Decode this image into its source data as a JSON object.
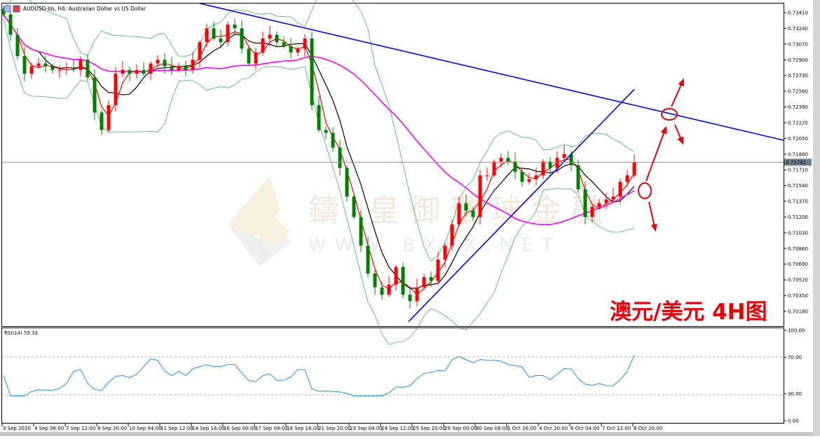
{
  "header": {
    "title": "AUDUSD-bb, H4:  Australian Dollar vs US Dollar"
  },
  "annotation": {
    "label": "澳元/美元 4H图",
    "color": "#e8000b"
  },
  "watermark": {
    "cn": "鑄 皇御環球金融",
    "url": "W W W . B X F X . N E T"
  },
  "rsi_panel": {
    "label": "RSI(14) 59.33",
    "ticks": [
      "100.00",
      "70.00",
      "30.00",
      "0.00"
    ]
  },
  "colors": {
    "bull": "#ff0000",
    "bear": "#008000",
    "ma_fast": "#ff0000",
    "ma_mid": "#000000",
    "ma_slow": "#ff00ff",
    "bands": "#3cb371",
    "trendline": "#0000ff",
    "rsi": "#1e90ff",
    "current_price_bg": "#708090"
  },
  "chart_data": {
    "type": "candlestick",
    "symbol": "AUDUSD-bb",
    "timeframe": "H4",
    "ylim": [
      0.7007,
      0.735
    ],
    "y_ticks": [
      "0.73410",
      "0.73240",
      "0.73070",
      "0.72900",
      "0.72730",
      "0.72560",
      "0.72390",
      "0.72220",
      "0.72050",
      "0.71880",
      "0.71710",
      "0.71540",
      "0.71370",
      "0.71200",
      "0.71030",
      "0.70860",
      "0.70690",
      "0.70520",
      "0.70350",
      "0.70180"
    ],
    "current_price": "0.71792",
    "x_ticks": [
      "3 Sep 2020",
      "4 Sep 08:00",
      "7 Sep 12:00",
      "8 Sep 20:00",
      "10 Sep 04:00",
      "11 Sep 12:00",
      "14 Sep 16:00",
      "16 Sep 00:00",
      "17 Sep 08:00",
      "18 Sep 16:00",
      "21 Sep 20:00",
      "23 Sep 04:00",
      "24 Sep 12:00",
      "25 Sep 20:00",
      "29 Sep 00:00",
      "30 Sep 08:00",
      "1 Oct 16:00",
      "4 Oct 20:00",
      "6 Oct 04:00",
      "7 Oct 12:00",
      "8 Oct 20:00"
    ],
    "closes": [
      0.7339,
      0.7317,
      0.7294,
      0.7275,
      0.7283,
      0.7286,
      0.7283,
      0.7279,
      0.7279,
      0.728,
      0.7279,
      0.729,
      0.7271,
      0.7233,
      0.7214,
      0.7241,
      0.7275,
      0.7279,
      0.7275,
      0.7279,
      0.7275,
      0.7286,
      0.729,
      0.7283,
      0.7279,
      0.7283,
      0.7279,
      0.729,
      0.7309,
      0.7324,
      0.7313,
      0.7309,
      0.7328,
      0.7324,
      0.7302,
      0.7286,
      0.7298,
      0.7313,
      0.7317,
      0.7309,
      0.7305,
      0.7298,
      0.7302,
      0.7313,
      0.7241,
      0.7214,
      0.7211,
      0.7195,
      0.7173,
      0.7142,
      0.712,
      0.7089,
      0.7059,
      0.7044,
      0.7036,
      0.7047,
      0.7066,
      0.7036,
      0.7029,
      0.7044,
      0.7055,
      0.7051,
      0.7074,
      0.7089,
      0.7112,
      0.7135,
      0.7127,
      0.712,
      0.7165,
      0.7165,
      0.718,
      0.7184,
      0.718,
      0.7169,
      0.7158,
      0.7161,
      0.7165,
      0.718,
      0.7173,
      0.7184,
      0.7188,
      0.7176,
      0.715,
      0.712,
      0.7131,
      0.7135,
      0.7139,
      0.7142,
      0.7158,
      0.7165,
      0.71792
    ],
    "indicators": [
      "MA fast (red)",
      "MA mid (black)",
      "MA slow (magenta)",
      "Bollinger Bands (green)",
      "RSI(14)"
    ],
    "rsi_levels": [
      70,
      30
    ],
    "trendlines": [
      {
        "name": "descending-resistance",
        "from": {
          "time": "14 Sep 16:00",
          "price": 0.7351
        },
        "to": {
          "time": "right edge",
          "price": 0.7203
        }
      },
      {
        "name": "ascending-support",
        "from": {
          "time": "25 Sep 12:00",
          "price": 0.7007
        },
        "to": {
          "time": "8 Oct 20:00",
          "price": 0.7258
        }
      }
    ]
  }
}
